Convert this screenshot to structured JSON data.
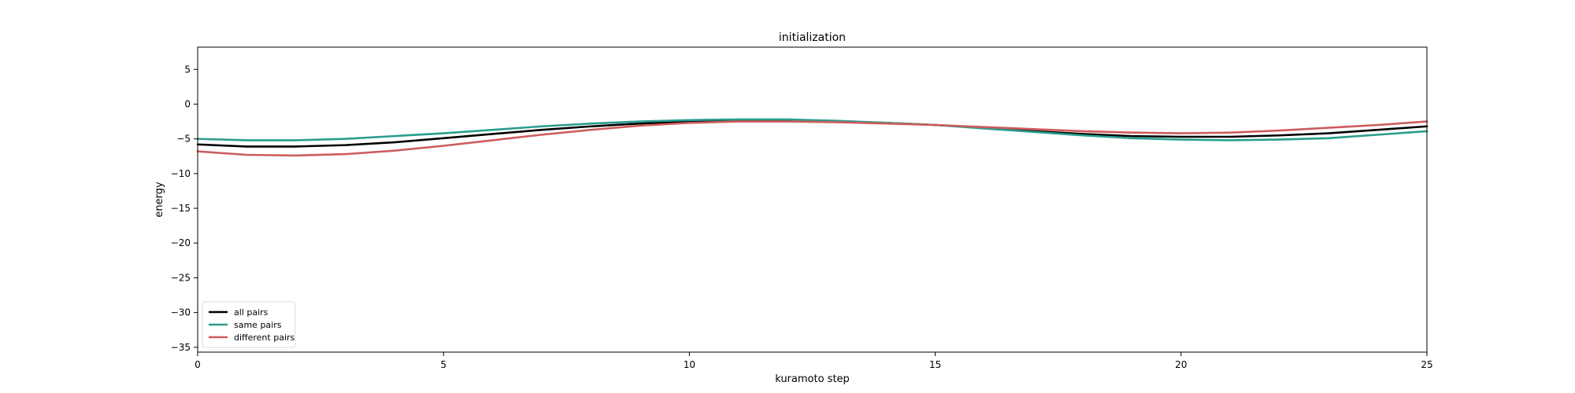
{
  "chart_data": {
    "type": "line",
    "title": "initialization",
    "xlabel": "kuramoto step",
    "ylabel": "energy",
    "xlim": [
      0,
      25
    ],
    "ylim": [
      -35.7,
      8.2
    ],
    "xticks": [
      0,
      5,
      10,
      15,
      20,
      25
    ],
    "yticks": [
      5,
      0,
      -5,
      -10,
      -15,
      -20,
      -25,
      -30,
      -35
    ],
    "grid": false,
    "legend_position": "lower-left",
    "x": [
      0,
      1,
      2,
      3,
      4,
      5,
      6,
      7,
      8,
      9,
      10,
      11,
      12,
      13,
      14,
      15,
      16,
      17,
      18,
      19,
      20,
      21,
      22,
      23,
      24,
      25
    ],
    "series": [
      {
        "name": "all pairs",
        "color": "#000000",
        "values": [
          -5.8,
          -6.1,
          -6.1,
          -5.9,
          -5.5,
          -4.9,
          -4.3,
          -3.7,
          -3.2,
          -2.8,
          -2.5,
          -2.4,
          -2.4,
          -2.5,
          -2.7,
          -3.0,
          -3.4,
          -3.9,
          -4.3,
          -4.6,
          -4.7,
          -4.7,
          -4.5,
          -4.2,
          -3.7,
          -3.2
        ]
      },
      {
        "name": "same pairs",
        "color": "#2a9d8f",
        "values": [
          -5.0,
          -5.2,
          -5.2,
          -5.0,
          -4.6,
          -4.2,
          -3.7,
          -3.2,
          -2.8,
          -2.5,
          -2.3,
          -2.2,
          -2.2,
          -2.4,
          -2.7,
          -3.0,
          -3.5,
          -4.0,
          -4.5,
          -4.9,
          -5.1,
          -5.2,
          -5.1,
          -4.9,
          -4.4,
          -3.9
        ]
      },
      {
        "name": "different pairs",
        "color": "#cd5c5c",
        "values": [
          -6.8,
          -7.3,
          -7.4,
          -7.2,
          -6.7,
          -6.0,
          -5.2,
          -4.4,
          -3.7,
          -3.1,
          -2.7,
          -2.5,
          -2.5,
          -2.6,
          -2.8,
          -3.0,
          -3.3,
          -3.6,
          -3.9,
          -4.1,
          -4.2,
          -4.1,
          -3.8,
          -3.4,
          -3.0,
          -2.5
        ]
      }
    ]
  }
}
